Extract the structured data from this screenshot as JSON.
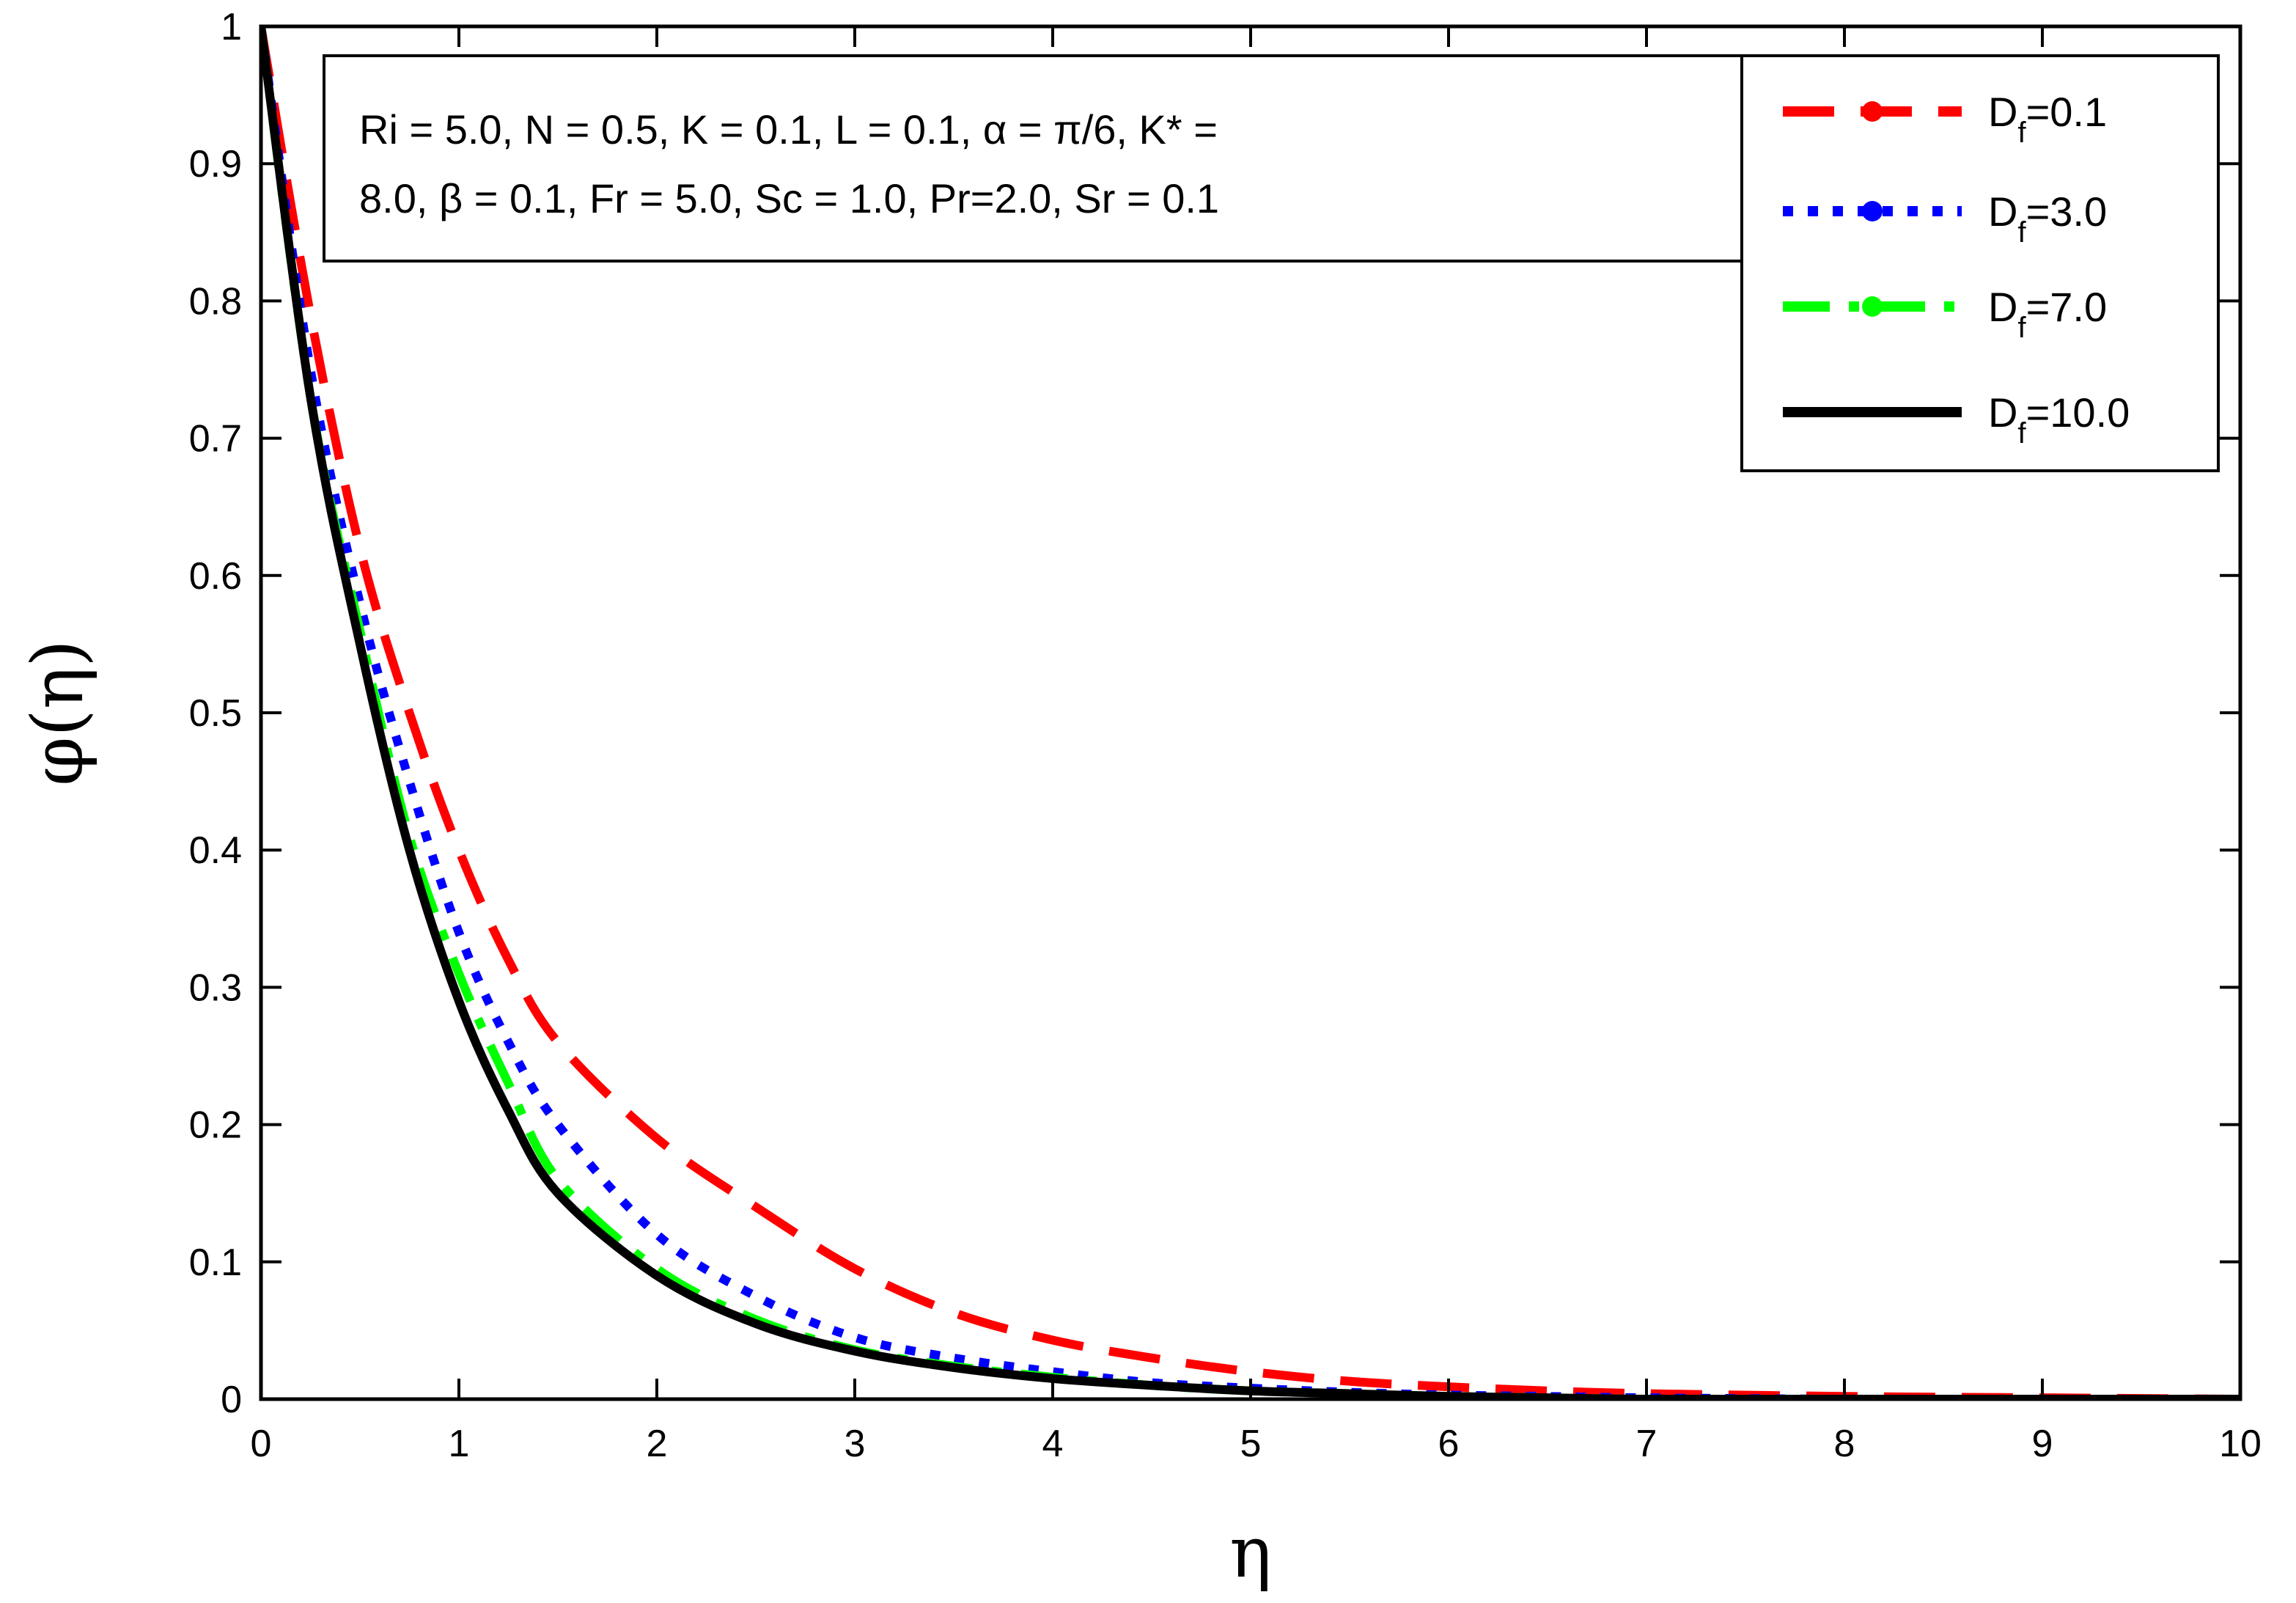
{
  "chart_data": {
    "type": "line",
    "title": "",
    "xlabel": "η",
    "ylabel": "φ(η)",
    "xlim": [
      0,
      10
    ],
    "ylim": [
      0,
      1
    ],
    "xticks": [
      "0",
      "1",
      "2",
      "3",
      "4",
      "5",
      "6",
      "7",
      "8",
      "9",
      "10"
    ],
    "yticks": [
      "0",
      "0.1",
      "0.2",
      "0.3",
      "0.4",
      "0.5",
      "0.6",
      "0.7",
      "0.8",
      "0.9",
      "1"
    ],
    "grid": false,
    "legend_position": "top-right",
    "annotation": {
      "line1": "Ri = 5.0, N = 0.5, K = 0.1, L = 0.1, α = π/6, K* =",
      "line2": "8.0, β = 0.1, Fr = 5.0, Sc = 1.0, Pr=2.0, Sr = 0.1"
    },
    "x": [
      0,
      0.25,
      0.5,
      0.75,
      1.0,
      1.25,
      1.5,
      2.0,
      2.5,
      3.0,
      3.5,
      4.0,
      4.5,
      5.0,
      5.5,
      6.0,
      6.5,
      7.0,
      8.0,
      9.0,
      10.0
    ],
    "series": [
      {
        "name": "D_f=0.1",
        "label_main": "D",
        "label_sub": "f",
        "label_rest": "=0.1",
        "color": "#ff0000",
        "style": "dash",
        "values": [
          1.0,
          0.79,
          0.62,
          0.5,
          0.4,
          0.32,
          0.26,
          0.19,
          0.14,
          0.095,
          0.063,
          0.043,
          0.03,
          0.02,
          0.013,
          0.009,
          0.006,
          0.004,
          0.002,
          0.001,
          0.0
        ]
      },
      {
        "name": "D_f=3.0",
        "label_main": "D",
        "label_sub": "f",
        "label_rest": "=3.0",
        "color": "#0000ff",
        "style": "dot",
        "values": [
          1.0,
          0.75,
          0.58,
          0.45,
          0.34,
          0.26,
          0.2,
          0.12,
          0.075,
          0.045,
          0.03,
          0.02,
          0.012,
          0.008,
          0.005,
          0.003,
          0.002,
          0.001,
          0.0,
          0.0,
          0.0
        ]
      },
      {
        "name": "D_f=7.0",
        "label_main": "D",
        "label_sub": "f",
        "label_rest": "=7.0",
        "color": "#00ff00",
        "style": "dashdot",
        "values": [
          1.0,
          0.73,
          0.56,
          0.41,
          0.31,
          0.23,
          0.16,
          0.095,
          0.058,
          0.036,
          0.024,
          0.016,
          0.01,
          0.006,
          0.004,
          0.002,
          0.001,
          0.0,
          0.0,
          0.0,
          0.0
        ]
      },
      {
        "name": "D_f=10.0",
        "label_main": "D",
        "label_sub": "f",
        "label_rest": "=10.0",
        "color": "#000000",
        "style": "solid",
        "values": [
          1.0,
          0.73,
          0.55,
          0.4,
          0.29,
          0.21,
          0.15,
          0.09,
          0.055,
          0.035,
          0.023,
          0.015,
          0.01,
          0.006,
          0.004,
          0.002,
          0.001,
          0.0,
          0.0,
          0.0,
          0.0
        ]
      }
    ]
  }
}
